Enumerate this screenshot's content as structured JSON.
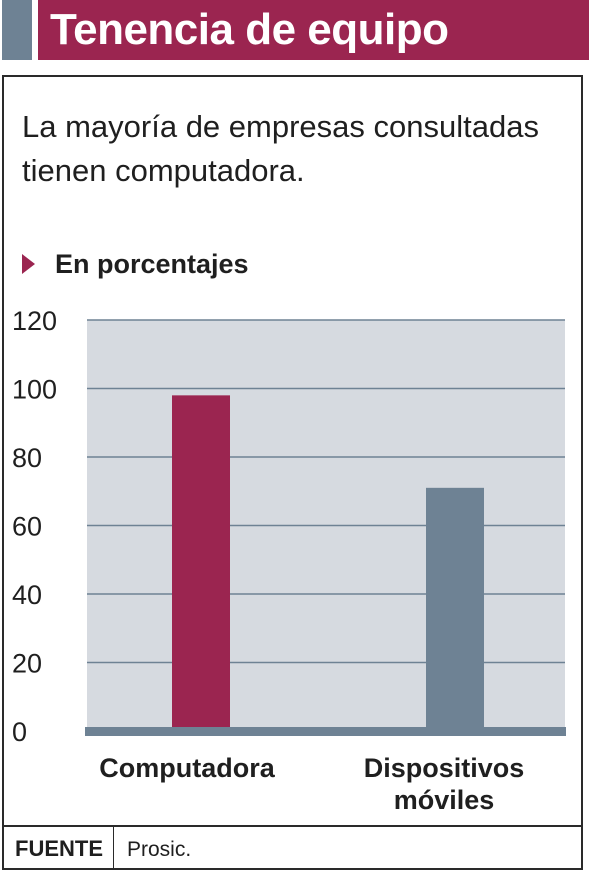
{
  "header": {
    "title": "Tenencia de equipo"
  },
  "subtitle": "La mayoría de empresas consultadas tienen computadora.",
  "unit_label": "En porcentajes",
  "colors": {
    "header_bg": "#9b2550",
    "header_strip": "#6e8294",
    "plot_bg": "#d6dae0",
    "gridline": "#6e8294",
    "baseline": "#6e8294",
    "bar_computadora": "#9b2550",
    "bar_dispositivos": "#6e8294",
    "text": "#1f1f1f"
  },
  "chart_data": {
    "type": "bar",
    "categories": [
      "Computadora",
      "Dispositivos móviles"
    ],
    "category_lines": [
      [
        "Computadora"
      ],
      [
        "Dispositivos",
        "móviles"
      ]
    ],
    "values": [
      98,
      71
    ],
    "ylim": [
      0,
      120
    ],
    "yticks": [
      "0",
      "20",
      "40",
      "60",
      "80",
      "100",
      "120"
    ],
    "grid": true,
    "legend": "none"
  },
  "footer": {
    "source_label": "FUENTE",
    "source_text": "Prosic."
  }
}
